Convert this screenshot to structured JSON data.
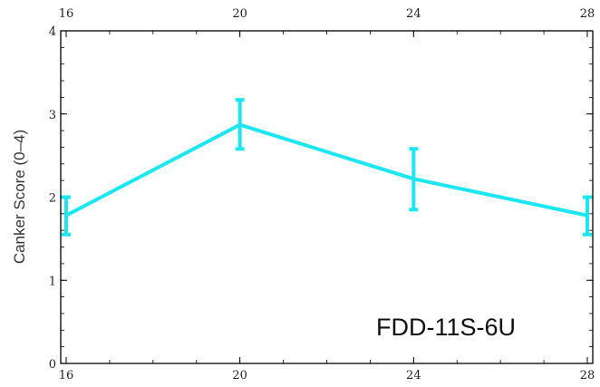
{
  "chart_data": {
    "type": "line",
    "title": "",
    "xlabel": "",
    "ylabel": "Canker Score (0–4)",
    "x": [
      16,
      20,
      24,
      28
    ],
    "series": [
      {
        "values": [
          1.78,
          2.87,
          2.22,
          1.78
        ],
        "err_low": [
          1.55,
          2.58,
          1.85,
          1.55
        ],
        "err_high": [
          2.0,
          3.17,
          2.58,
          2.0
        ],
        "color": "#1ee6f0"
      }
    ],
    "xlim": [
      16,
      28
    ],
    "ylim": [
      0,
      4
    ],
    "xticks": [
      "16",
      "20",
      "24",
      "28"
    ],
    "yticks": [
      "0",
      "1",
      "2",
      "3",
      "4"
    ],
    "annotation": "FDD-11S-6U",
    "grid": false,
    "frame_ticks_top": true
  }
}
